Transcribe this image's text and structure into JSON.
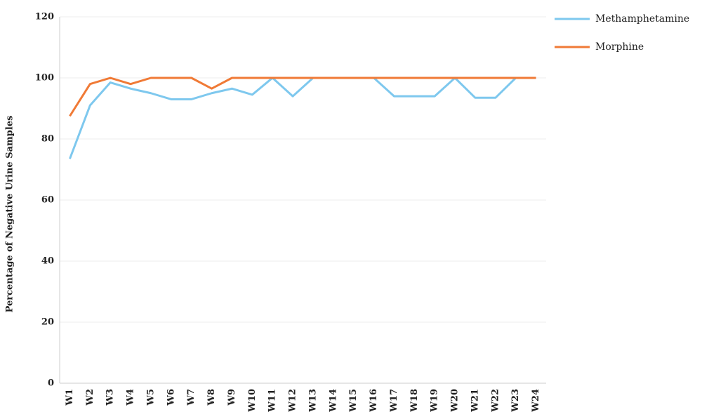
{
  "chart_data": {
    "type": "line",
    "y_label": "Percentage of Negative Urine Samples",
    "categories": [
      "W1",
      "W2",
      "W3",
      "W4",
      "W5",
      "W6",
      "W7",
      "W8",
      "W9",
      "W10",
      "W11",
      "W12",
      "W13",
      "W14",
      "W15",
      "W16",
      "W17",
      "W18",
      "W19",
      "W20",
      "W21",
      "W22",
      "W23",
      "W24"
    ],
    "series": [
      {
        "name": "Methamphetamine",
        "color": "#7ec8ee",
        "values": [
          73.5,
          91,
          98.5,
          96.5,
          95,
          93,
          93,
          95,
          96.5,
          94.5,
          100,
          94,
          100,
          100,
          100,
          100,
          94,
          94,
          94,
          100,
          93.5,
          93.5,
          100,
          100
        ]
      },
      {
        "name": "Morphine",
        "color": "#f07a36",
        "values": [
          87.5,
          98,
          100,
          98,
          100,
          100,
          100,
          96.5,
          100,
          100,
          100,
          100,
          100,
          100,
          100,
          100,
          100,
          100,
          100,
          100,
          100,
          100,
          100,
          100
        ]
      }
    ],
    "ylim": [
      0,
      120
    ],
    "yticks": [
      0,
      20,
      40,
      60,
      80,
      100,
      120
    ],
    "grid": true,
    "legend": "right"
  }
}
